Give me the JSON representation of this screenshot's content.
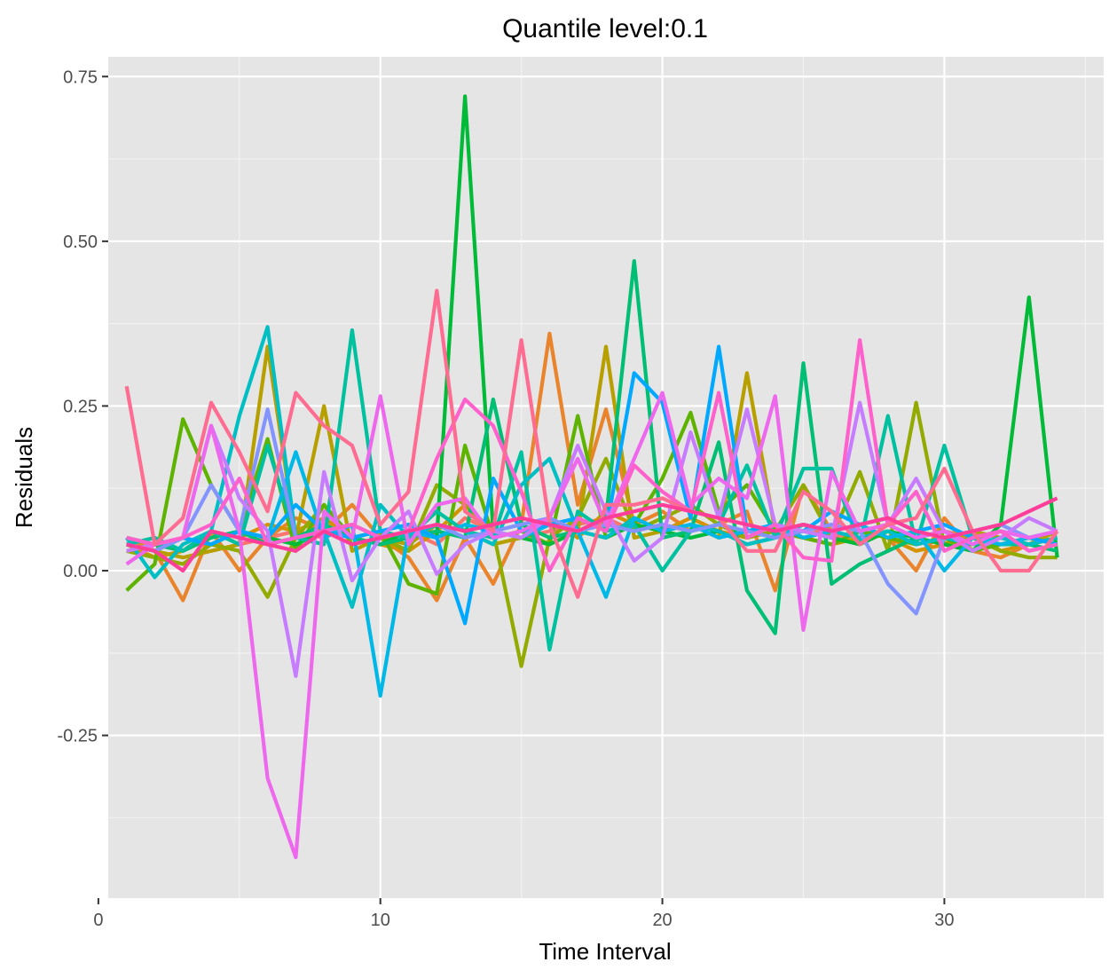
{
  "chart_data": {
    "type": "line",
    "title": "Quantile level:0.1",
    "xlabel": "Time Interval",
    "ylabel": "Residuals",
    "x": [
      1,
      2,
      3,
      4,
      5,
      6,
      7,
      8,
      9,
      10,
      11,
      12,
      13,
      14,
      15,
      16,
      17,
      18,
      19,
      20,
      21,
      22,
      23,
      24,
      25,
      26,
      27,
      28,
      29,
      30,
      31,
      32,
      33,
      34
    ],
    "xlim": [
      0.35,
      35.65
    ],
    "ylim": [
      -0.497,
      0.78
    ],
    "x_ticks": [
      0,
      10,
      20,
      30
    ],
    "x_tick_labels": [
      "0",
      "10",
      "20",
      "30"
    ],
    "y_ticks": [
      -0.25,
      0,
      0.25,
      0.5,
      0.75
    ],
    "y_tick_labels": [
      "-0.25",
      "0.00",
      "0.25",
      "0.50",
      "0.75"
    ],
    "grid": true,
    "legend": "none",
    "panel_background": "#e5e5e5",
    "series": [
      {
        "color": "#F8766D",
        "values": [
          0.05,
          0.04,
          0.03,
          0.06,
          0.04,
          0.05,
          0.06,
          0.05,
          0.07,
          0.05,
          0.06,
          0.04,
          0.08,
          0.06,
          0.05,
          0.06,
          0.07,
          0.08,
          0.06,
          0.07,
          0.06,
          0.07,
          0.05,
          0.06,
          0.07,
          0.05,
          0.06,
          0.07,
          0.05,
          0.06,
          0.05,
          0.04,
          0.05,
          0.04
        ]
      },
      {
        "color": "#E9842C",
        "values": [
          0.05,
          0.03,
          -0.045,
          0.06,
          0.0,
          0.05,
          0.08,
          0.06,
          0.1,
          0.05,
          0.02,
          -0.045,
          0.05,
          -0.02,
          0.07,
          0.36,
          0.1,
          0.245,
          0.07,
          0.09,
          0.06,
          0.07,
          0.09,
          -0.03,
          0.13,
          0.06,
          0.07,
          0.05,
          0.0,
          0.08,
          0.03,
          0.02,
          0.04,
          0.05
        ]
      },
      {
        "color": "#D69100",
        "values": [
          0.04,
          0.02,
          0.03,
          0.06,
          0.05,
          0.07,
          0.06,
          0.08,
          0.05,
          0.04,
          0.03,
          0.06,
          0.1,
          0.05,
          0.06,
          0.08,
          0.05,
          0.09,
          0.07,
          0.06,
          0.08,
          0.06,
          0.05,
          0.07,
          0.05,
          0.04,
          0.06,
          0.05,
          0.03,
          0.04,
          0.06,
          0.03,
          0.04,
          0.05
        ]
      },
      {
        "color": "#B79F00",
        "values": [
          0.04,
          0.03,
          0.02,
          0.03,
          0.04,
          0.34,
          0.05,
          0.25,
          0.03,
          0.05,
          0.04,
          0.07,
          0.06,
          0.04,
          0.05,
          0.07,
          0.06,
          0.34,
          0.05,
          0.06,
          0.07,
          0.05,
          0.3,
          0.06,
          0.05,
          0.04,
          0.05,
          0.06,
          0.04,
          0.05,
          0.06,
          0.05,
          0.04,
          0.06
        ]
      },
      {
        "color": "#93AA00",
        "values": [
          0.03,
          0.02,
          0.01,
          0.04,
          0.03,
          -0.04,
          0.05,
          0.1,
          0.04,
          0.05,
          0.03,
          0.13,
          0.1,
          0.06,
          -0.145,
          0.05,
          0.08,
          0.17,
          0.06,
          0.08,
          0.1,
          0.07,
          0.05,
          0.06,
          0.13,
          0.05,
          0.15,
          0.03,
          0.255,
          0.04,
          0.05,
          0.03,
          0.02,
          0.02
        ]
      },
      {
        "color": "#5EB300",
        "values": [
          -0.03,
          0.01,
          0.23,
          0.13,
          0.06,
          0.2,
          0.03,
          0.1,
          0.05,
          0.06,
          -0.02,
          -0.035,
          0.19,
          0.05,
          0.06,
          0.04,
          0.235,
          0.05,
          0.07,
          0.14,
          0.24,
          0.09,
          0.13,
          0.06,
          0.05,
          0.04,
          0.06,
          0.05,
          0.04,
          0.05,
          0.03,
          0.04,
          0.05,
          0.04
        ]
      },
      {
        "color": "#00BA38",
        "values": [
          0.04,
          0.03,
          0.05,
          0.04,
          0.06,
          0.05,
          0.04,
          0.06,
          0.05,
          0.04,
          0.06,
          0.05,
          0.72,
          0.06,
          0.05,
          0.04,
          0.06,
          0.05,
          0.07,
          0.06,
          0.05,
          0.06,
          0.04,
          0.05,
          0.06,
          0.05,
          0.04,
          0.06,
          0.05,
          0.04,
          0.03,
          0.07,
          0.415,
          0.02
        ]
      },
      {
        "color": "#00BF74",
        "values": [
          0.05,
          0.04,
          0.03,
          0.05,
          0.06,
          0.04,
          0.05,
          0.07,
          0.05,
          0.04,
          0.05,
          0.06,
          0.05,
          0.26,
          0.07,
          0.05,
          0.06,
          0.08,
          0.47,
          0.05,
          0.06,
          0.195,
          -0.03,
          -0.095,
          0.315,
          -0.02,
          0.01,
          0.03,
          0.05,
          0.06,
          0.04,
          0.05,
          0.04,
          0.03
        ]
      },
      {
        "color": "#00C19F",
        "values": [
          0.04,
          0.05,
          0.03,
          0.06,
          0.04,
          0.19,
          0.05,
          0.04,
          0.365,
          0.06,
          0.05,
          0.09,
          0.06,
          0.05,
          0.18,
          -0.12,
          0.09,
          0.06,
          0.07,
          0.0,
          0.06,
          0.07,
          0.16,
          0.05,
          0.155,
          0.155,
          0.04,
          0.235,
          0.04,
          0.19,
          0.05,
          0.04,
          0.04,
          0.05
        ]
      },
      {
        "color": "#00BFC4",
        "values": [
          0.05,
          -0.01,
          0.04,
          0.06,
          0.235,
          0.37,
          0.05,
          0.06,
          -0.055,
          0.1,
          0.05,
          0.07,
          0.06,
          0.04,
          0.13,
          0.17,
          0.06,
          0.05,
          0.08,
          0.06,
          0.07,
          0.06,
          0.04,
          0.05,
          0.07,
          0.06,
          0.05,
          0.06,
          0.04,
          0.05,
          0.04,
          0.05,
          0.04,
          0.05
        ]
      },
      {
        "color": "#00B8E7",
        "values": [
          0.04,
          0.03,
          0.05,
          0.04,
          0.06,
          0.05,
          0.18,
          0.05,
          0.07,
          -0.19,
          0.06,
          0.05,
          0.07,
          0.06,
          0.05,
          0.07,
          0.06,
          -0.04,
          0.08,
          0.06,
          0.07,
          0.05,
          0.06,
          0.07,
          0.05,
          0.06,
          0.07,
          0.05,
          0.06,
          0.0,
          0.05,
          0.04,
          0.05,
          0.06
        ]
      },
      {
        "color": "#00A9FF",
        "values": [
          0.04,
          0.03,
          0.05,
          0.04,
          0.06,
          0.05,
          0.1,
          0.06,
          0.05,
          0.06,
          0.07,
          0.05,
          -0.08,
          0.14,
          0.06,
          0.07,
          0.08,
          0.06,
          0.3,
          0.255,
          0.08,
          0.34,
          0.06,
          0.07,
          0.06,
          0.09,
          0.07,
          0.08,
          0.06,
          0.07,
          0.05,
          0.06,
          0.05,
          0.04
        ]
      },
      {
        "color": "#8494FF",
        "values": [
          0.04,
          0.03,
          0.05,
          0.13,
          0.06,
          0.245,
          0.05,
          0.06,
          0.07,
          0.05,
          0.06,
          0.07,
          0.05,
          0.06,
          0.07,
          0.08,
          0.06,
          0.07,
          0.06,
          0.07,
          0.06,
          0.07,
          0.06,
          0.05,
          0.06,
          0.07,
          0.06,
          -0.02,
          -0.065,
          0.05,
          0.06,
          0.07,
          0.05,
          0.06
        ]
      },
      {
        "color": "#C77CFF",
        "values": [
          0.03,
          0.04,
          0.05,
          0.22,
          0.11,
          0.06,
          -0.16,
          0.15,
          -0.015,
          0.05,
          0.09,
          -0.005,
          0.04,
          0.06,
          0.05,
          0.08,
          0.19,
          0.09,
          0.015,
          0.05,
          0.21,
          0.08,
          0.245,
          0.07,
          0.06,
          0.05,
          0.255,
          0.07,
          0.14,
          0.06,
          0.03,
          0.05,
          0.08,
          0.06
        ]
      },
      {
        "color": "#ED68ED",
        "values": [
          0.01,
          0.04,
          0.05,
          0.22,
          0.06,
          -0.315,
          -0.435,
          0.09,
          0.05,
          0.265,
          0.04,
          0.1,
          0.11,
          0.05,
          0.06,
          0.08,
          0.17,
          0.07,
          0.17,
          0.27,
          0.1,
          0.14,
          0.11,
          0.265,
          -0.09,
          0.15,
          0.06,
          0.07,
          0.05,
          0.06,
          0.04,
          0.06,
          0.05,
          0.06
        ]
      },
      {
        "color": "#FF61CC",
        "values": [
          0.05,
          0.04,
          0.05,
          0.07,
          0.14,
          0.04,
          0.05,
          0.06,
          0.07,
          0.05,
          0.06,
          0.17,
          0.26,
          0.22,
          0.12,
          0.0,
          0.08,
          0.06,
          0.16,
          0.12,
          0.09,
          0.27,
          0.05,
          0.07,
          0.02,
          0.015,
          0.35,
          0.07,
          0.12,
          0.03,
          0.05,
          0.06,
          0.03,
          0.04
        ]
      },
      {
        "color": "#FF6C91",
        "values": [
          0.28,
          0.04,
          0.08,
          0.255,
          0.18,
          0.09,
          0.27,
          0.22,
          0.19,
          0.07,
          0.12,
          0.425,
          0.09,
          0.06,
          0.35,
          0.07,
          -0.04,
          0.1,
          0.1,
          0.11,
          0.09,
          0.08,
          0.03,
          0.03,
          0.12,
          0.09,
          0.04,
          0.07,
          0.08,
          0.155,
          0.06,
          0.0,
          0.0,
          0.06
        ]
      },
      {
        "color": "#FF3E9A",
        "values": [
          0.04,
          0.03,
          0.0,
          0.06,
          0.05,
          0.04,
          0.03,
          0.06,
          0.04,
          0.05,
          0.06,
          0.07,
          0.06,
          0.07,
          0.08,
          0.07,
          0.06,
          0.08,
          0.09,
          0.1,
          0.09,
          0.08,
          0.07,
          0.06,
          0.07,
          0.06,
          0.07,
          0.08,
          0.06,
          0.05,
          0.06,
          0.07,
          0.09,
          0.11
        ]
      }
    ]
  }
}
